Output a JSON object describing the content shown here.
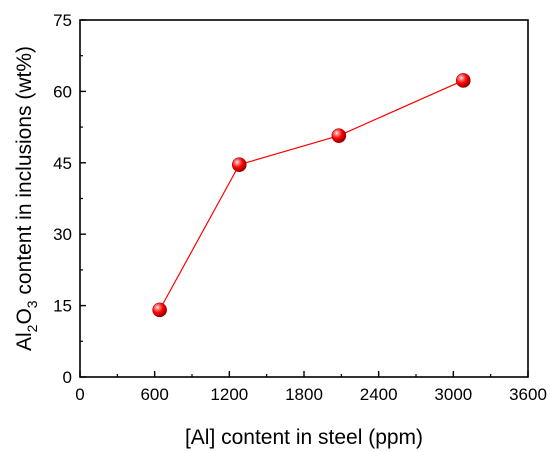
{
  "chart_data": {
    "type": "line",
    "title": "",
    "xlabel": "[Al] content in steel (ppm)",
    "ylabel": {
      "prefix": "Al",
      "sub1": "2",
      "mid": "O",
      "sub2": "3",
      "suffix": " content in inclusions (wt%)"
    },
    "xlim": [
      0,
      3600
    ],
    "ylim": [
      0,
      75
    ],
    "xticks": [
      "0",
      "600",
      "1200",
      "1800",
      "2400",
      "3000",
      "3600"
    ],
    "yticks": [
      "0",
      "15",
      "30",
      "45",
      "60",
      "75"
    ],
    "grid": false,
    "legend": "none",
    "series": [
      {
        "color": "#ff0000",
        "marker": "sphere",
        "points": [
          {
            "x": 640,
            "y": 14.1
          },
          {
            "x": 1280,
            "y": 44.6
          },
          {
            "x": 2080,
            "y": 50.7
          },
          {
            "x": 3080,
            "y": 62.3
          }
        ]
      }
    ]
  }
}
